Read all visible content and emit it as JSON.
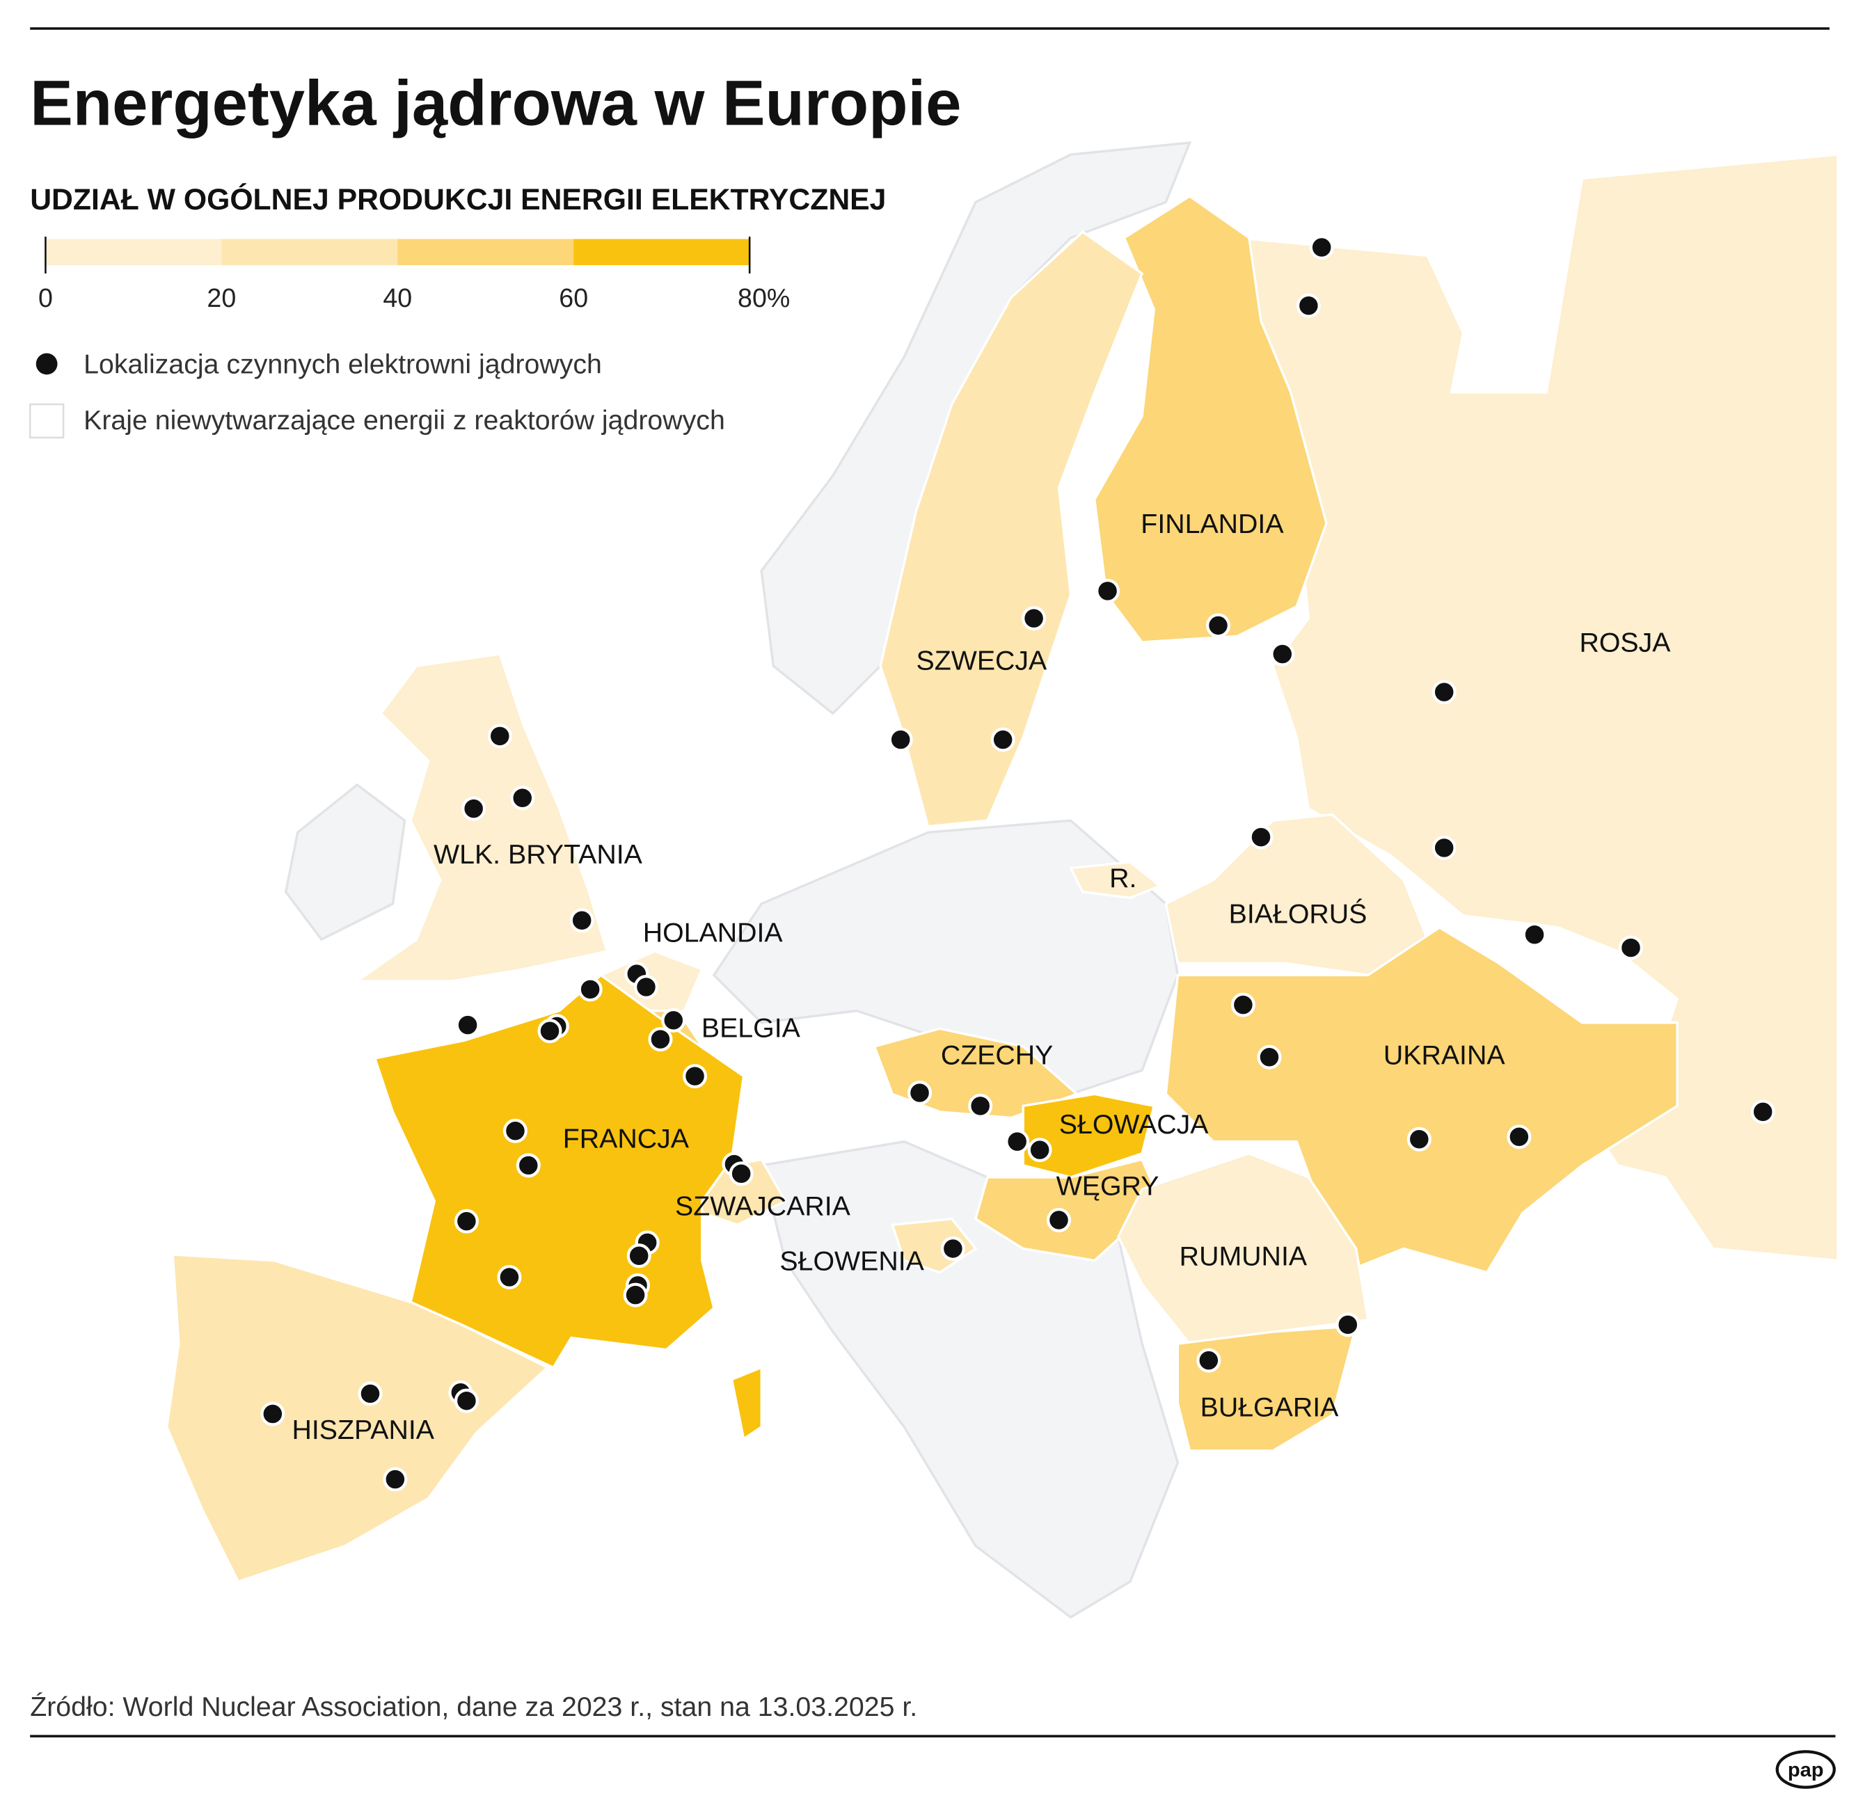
{
  "header": {
    "title": "Energetyka jądrowa w Europie",
    "subtitle": "UDZIAŁ W OGÓLNEJ PRODUKCJI ENERGII ELEKTRYCZNEJ"
  },
  "legend": {
    "scale": [
      "0",
      "20",
      "40",
      "60",
      "80%"
    ],
    "items": [
      "Lokalizacja czynnych elektrowni jądrowych",
      "Kraje niewytwarzające energii z reaktorów jądrowych"
    ]
  },
  "countries": [
    "FINLANDIA",
    "ROSJA",
    "SZWECJA",
    "WLK. BRYTANIA",
    "R.",
    "BIAŁORUŚ",
    "HOLANDIA",
    "BELGIA",
    "CZECHY",
    "UKRAINA",
    "FRANCJA",
    "SŁOWACJA",
    "WĘGRY",
    "SZWAJCARIA",
    "SŁOWENIA",
    "RUMUNIA",
    "HISZPANIA",
    "BUŁGARIA"
  ],
  "footer": {
    "source": "Źródło: World Nuclear Association, dane za 2023 r., stan na 13.03.2025 r.",
    "logo": "pap"
  }
}
